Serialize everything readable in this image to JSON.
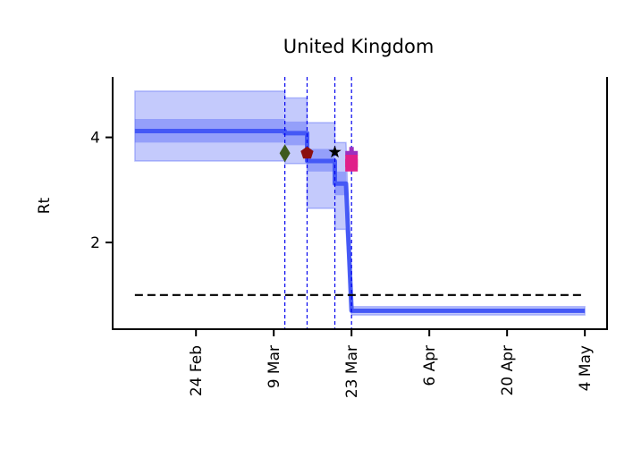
{
  "chart_data": {
    "type": "line",
    "title": "United Kingdom",
    "ylabel": "Rt",
    "xlabel": "",
    "x_ticks": [
      {
        "date": "2020-02-24",
        "label": "24 Feb"
      },
      {
        "date": "2020-03-09",
        "label": "9 Mar"
      },
      {
        "date": "2020-03-23",
        "label": "23 Mar"
      },
      {
        "date": "2020-04-06",
        "label": "6 Apr"
      },
      {
        "date": "2020-04-20",
        "label": "20 Apr"
      },
      {
        "date": "2020-05-04",
        "label": "4 May"
      }
    ],
    "y_ticks": [
      2,
      4
    ],
    "xlim": [
      "2020-02-09",
      "2020-05-08"
    ],
    "ylim": [
      0.35,
      5.15
    ],
    "reference_line": {
      "y": 1,
      "x_start": "2020-02-13",
      "x_end": "2020-05-04",
      "style": "dashed",
      "color": "#000000"
    },
    "intervention_lines": [
      "2020-03-11",
      "2020-03-15",
      "2020-03-20",
      "2020-03-23"
    ],
    "series": [
      {
        "color": "#3b50f5",
        "points": [
          {
            "x": "2020-02-13",
            "y": 4.12,
            "lo50": 3.9,
            "hi50": 4.35,
            "lo95": 3.55,
            "hi95": 4.88
          },
          {
            "x": "2020-03-11",
            "y": 4.12,
            "lo50": 3.9,
            "hi50": 4.35,
            "lo95": 3.55,
            "hi95": 4.88
          },
          {
            "x": "2020-03-11",
            "y": 4.08,
            "lo50": 3.85,
            "hi50": 4.3,
            "lo95": 3.5,
            "hi95": 4.75
          },
          {
            "x": "2020-03-15",
            "y": 4.08,
            "lo50": 3.85,
            "hi50": 4.3,
            "lo95": 3.5,
            "hi95": 4.75
          },
          {
            "x": "2020-03-15",
            "y": 3.55,
            "lo50": 3.35,
            "hi50": 3.78,
            "lo95": 2.65,
            "hi95": 4.28
          },
          {
            "x": "2020-03-20",
            "y": 3.55,
            "lo50": 3.35,
            "hi50": 3.78,
            "lo95": 2.65,
            "hi95": 4.28
          },
          {
            "x": "2020-03-20",
            "y": 3.12,
            "lo50": 2.9,
            "hi50": 3.35,
            "lo95": 2.25,
            "hi95": 3.9
          },
          {
            "x": "2020-03-22",
            "y": 3.12,
            "lo50": 2.9,
            "hi50": 3.35,
            "lo95": 2.25,
            "hi95": 3.9
          },
          {
            "x": "2020-03-23",
            "y": 0.7,
            "lo50": 0.66,
            "hi50": 0.74,
            "lo95": 0.62,
            "hi95": 0.78
          },
          {
            "x": "2020-05-04",
            "y": 0.7,
            "lo50": 0.66,
            "hi50": 0.74,
            "lo95": 0.62,
            "hi95": 0.78
          }
        ]
      }
    ],
    "markers": [
      {
        "date": "2020-03-11",
        "y": 3.7,
        "shape": "diamond",
        "color": "#3e5a1e"
      },
      {
        "date": "2020-03-15",
        "y": 3.7,
        "shape": "pentagon",
        "color": "#8b1010"
      },
      {
        "date": "2020-03-20",
        "y": 3.72,
        "shape": "star",
        "color": "#000000"
      },
      {
        "date": "2020-03-23",
        "y": 3.7,
        "shape": "plus",
        "color": "#9b30c0"
      },
      {
        "date": "2020-03-23",
        "y": 3.55,
        "shape": "square",
        "color": "#e0208a"
      },
      {
        "date": "2020-03-23",
        "y": 3.47,
        "shape": "square",
        "color": "#e0208a"
      }
    ]
  }
}
